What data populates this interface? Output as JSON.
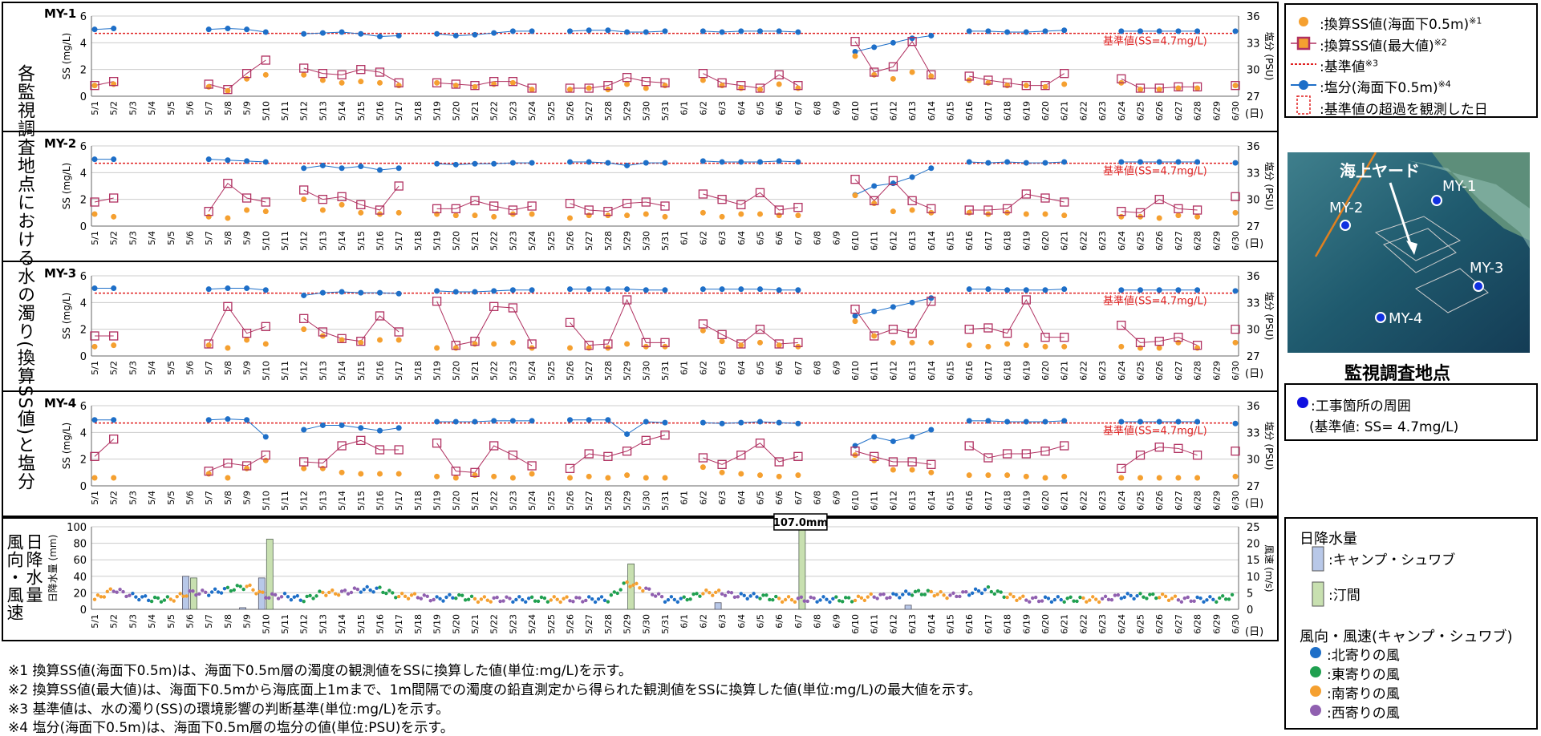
{
  "left_title": "各監視調査地点における水の濁り(換算SS値)と塩分",
  "rain_title_line1": "日降水量",
  "rain_title_line2": "風向・風速",
  "dates": [
    "5/1",
    "5/2",
    "5/3",
    "5/4",
    "5/5",
    "5/6",
    "5/7",
    "5/8",
    "5/9",
    "5/10",
    "5/11",
    "5/12",
    "5/13",
    "5/14",
    "5/15",
    "5/16",
    "5/17",
    "5/18",
    "5/19",
    "5/20",
    "5/21",
    "5/22",
    "5/23",
    "5/24",
    "5/25",
    "5/26",
    "5/27",
    "5/28",
    "5/29",
    "5/30",
    "5/31",
    "6/1",
    "6/2",
    "6/3",
    "6/4",
    "6/5",
    "6/6",
    "6/7",
    "6/8",
    "6/9",
    "6/10",
    "6/11",
    "6/12",
    "6/13",
    "6/14",
    "6/15",
    "6/16",
    "6/17",
    "6/18",
    "6/19",
    "6/20",
    "6/21",
    "6/22",
    "6/23",
    "6/24",
    "6/25",
    "6/26",
    "6/27",
    "6/28",
    "6/29",
    "6/30"
  ],
  "day_unit": "(日)",
  "ss_axis_label": "SS (mg/L)",
  "sal_axis_label": "塩分 (PSU)",
  "threshold_label": "基準値(SS=4.7mg/L)",
  "rain_axis_label": "日降水量 (mm)",
  "wind_axis_label": "風速 (m/s)",
  "rain_annotation": "107.0mm",
  "chart_data": [
    {
      "type": "line",
      "name": "MY-1",
      "ylim": [
        0,
        6
      ],
      "y2lim": [
        27,
        36
      ],
      "threshold": 4.7,
      "ss_surface": [
        0.8,
        0.9,
        null,
        null,
        null,
        null,
        0.7,
        0.4,
        1.3,
        1.6,
        null,
        1.6,
        1.2,
        1.0,
        1.1,
        1.0,
        0.8,
        null,
        1.0,
        0.8,
        0.7,
        0.9,
        1.0,
        0.5,
        null,
        0.5,
        0.6,
        0.5,
        0.9,
        0.6,
        0.8,
        null,
        1.2,
        0.8,
        0.6,
        0.5,
        0.9,
        0.6,
        null,
        null,
        3.0,
        1.6,
        1.3,
        1.8,
        1.5,
        null,
        1.2,
        1.0,
        0.8,
        0.8,
        0.7,
        0.9,
        null,
        null,
        1.0,
        0.5,
        0.5,
        0.6,
        0.6,
        null,
        0.8
      ],
      "ss_max": [
        0.8,
        1.1,
        null,
        null,
        null,
        null,
        0.9,
        0.5,
        1.7,
        2.7,
        null,
        2.1,
        1.7,
        1.6,
        2.0,
        1.8,
        1.0,
        null,
        1.0,
        0.9,
        0.8,
        1.1,
        1.1,
        0.6,
        null,
        0.6,
        0.6,
        0.8,
        1.4,
        1.1,
        1.0,
        null,
        1.7,
        1.0,
        0.8,
        0.6,
        1.6,
        0.8,
        null,
        null,
        4.1,
        1.8,
        2.2,
        4.1,
        1.6,
        null,
        1.5,
        1.2,
        1.0,
        0.8,
        0.8,
        1.7,
        null,
        null,
        1.3,
        0.6,
        0.6,
        0.7,
        0.7,
        null,
        0.8
      ],
      "salinity": [
        34.5,
        34.6,
        null,
        null,
        null,
        null,
        34.5,
        34.6,
        34.5,
        34.2,
        null,
        34.0,
        34.1,
        34.2,
        34.0,
        33.7,
        33.8,
        null,
        34.0,
        33.8,
        33.9,
        34.1,
        34.3,
        34.3,
        null,
        34.3,
        34.4,
        34.4,
        34.2,
        34.2,
        34.3,
        null,
        34.3,
        34.2,
        34.3,
        34.3,
        34.3,
        34.2,
        null,
        null,
        32.0,
        32.5,
        33.0,
        33.5,
        33.8,
        null,
        34.3,
        34.3,
        34.2,
        34.2,
        34.3,
        34.4,
        null,
        null,
        34.3,
        34.3,
        34.3,
        34.3,
        34.3,
        null,
        34.3
      ]
    },
    {
      "type": "line",
      "name": "MY-2",
      "ylim": [
        0,
        6
      ],
      "y2lim": [
        27,
        36
      ],
      "threshold": 4.7,
      "ss_surface": [
        0.9,
        0.7,
        null,
        null,
        null,
        null,
        0.7,
        0.6,
        1.2,
        1.1,
        null,
        2.0,
        1.2,
        1.6,
        1.0,
        0.9,
        1.0,
        null,
        0.9,
        0.8,
        0.8,
        0.7,
        0.9,
        0.9,
        null,
        0.6,
        0.8,
        0.8,
        0.8,
        0.9,
        0.7,
        null,
        1.0,
        0.7,
        0.9,
        0.9,
        0.8,
        0.8,
        null,
        null,
        2.3,
        1.7,
        1.1,
        1.2,
        1.0,
        null,
        1.0,
        0.9,
        1.0,
        0.9,
        0.9,
        0.8,
        null,
        null,
        0.7,
        0.7,
        0.6,
        0.8,
        0.7,
        null,
        1.0
      ],
      "ss_max": [
        1.8,
        2.1,
        null,
        null,
        null,
        null,
        1.1,
        3.2,
        2.1,
        1.8,
        null,
        2.7,
        2.0,
        2.2,
        1.6,
        1.2,
        3.0,
        null,
        1.3,
        1.3,
        1.9,
        1.5,
        1.2,
        1.5,
        null,
        1.7,
        1.2,
        1.1,
        1.7,
        1.8,
        1.5,
        null,
        2.4,
        2.0,
        1.6,
        2.5,
        1.2,
        1.4,
        null,
        null,
        3.5,
        1.9,
        3.4,
        1.9,
        1.3,
        null,
        1.2,
        1.2,
        1.3,
        2.4,
        2.1,
        1.8,
        null,
        null,
        1.1,
        1.0,
        2.0,
        1.3,
        1.2,
        null,
        2.2
      ],
      "salinity": [
        34.5,
        34.5,
        null,
        null,
        null,
        null,
        34.5,
        34.4,
        34.3,
        34.2,
        null,
        33.5,
        33.8,
        33.5,
        33.7,
        33.3,
        33.5,
        null,
        34.0,
        33.9,
        34.0,
        34.0,
        34.1,
        34.1,
        null,
        34.2,
        34.2,
        34.1,
        33.8,
        34.1,
        34.1,
        null,
        34.3,
        34.2,
        34.2,
        34.2,
        34.3,
        34.2,
        null,
        null,
        30.5,
        31.5,
        31.8,
        32.5,
        33.5,
        null,
        34.2,
        34.1,
        34.2,
        34.1,
        34.1,
        34.2,
        null,
        null,
        34.2,
        34.2,
        34.2,
        34.2,
        34.2,
        null,
        34.1
      ]
    },
    {
      "type": "line",
      "name": "MY-3",
      "ylim": [
        0,
        6
      ],
      "y2lim": [
        27,
        36
      ],
      "threshold": 4.7,
      "ss_surface": [
        0.7,
        0.8,
        null,
        null,
        null,
        null,
        0.8,
        0.6,
        1.2,
        0.9,
        null,
        2.0,
        1.5,
        1.2,
        1.0,
        1.2,
        1.2,
        null,
        0.6,
        0.6,
        0.9,
        0.9,
        1.0,
        0.6,
        null,
        0.6,
        0.6,
        0.6,
        0.9,
        0.7,
        0.7,
        null,
        1.9,
        1.1,
        0.8,
        1.0,
        0.8,
        0.7,
        null,
        null,
        2.6,
        1.5,
        1.0,
        1.0,
        1.0,
        null,
        0.8,
        0.7,
        0.9,
        0.8,
        0.7,
        0.7,
        null,
        null,
        0.7,
        0.6,
        0.6,
        1.0,
        0.6,
        null,
        1.0
      ],
      "ss_max": [
        1.5,
        1.5,
        null,
        null,
        null,
        null,
        0.9,
        3.7,
        1.7,
        2.2,
        null,
        2.8,
        1.8,
        1.3,
        1.1,
        3.0,
        1.8,
        null,
        4.1,
        0.8,
        1.1,
        3.7,
        3.6,
        0.9,
        null,
        2.5,
        0.8,
        0.9,
        4.2,
        1.0,
        1.0,
        null,
        2.4,
        1.6,
        0.9,
        2.0,
        0.9,
        1.0,
        null,
        null,
        3.5,
        1.5,
        2.0,
        1.7,
        4.1,
        null,
        2.0,
        2.1,
        1.7,
        4.2,
        1.4,
        1.4,
        null,
        null,
        2.3,
        1.0,
        1.1,
        1.4,
        0.8,
        null,
        2.0
      ],
      "salinity": [
        34.6,
        34.6,
        null,
        null,
        null,
        null,
        34.5,
        34.6,
        34.6,
        34.4,
        null,
        33.8,
        34.1,
        34.2,
        34.1,
        34.1,
        34.0,
        null,
        34.3,
        34.2,
        34.2,
        34.3,
        34.4,
        34.4,
        null,
        34.5,
        34.5,
        34.5,
        34.5,
        34.4,
        34.4,
        null,
        34.5,
        34.5,
        34.5,
        34.5,
        34.4,
        34.4,
        null,
        null,
        31.5,
        32.0,
        32.5,
        33.0,
        33.5,
        null,
        34.5,
        34.5,
        34.4,
        34.4,
        34.4,
        34.5,
        null,
        null,
        34.4,
        34.4,
        34.4,
        34.4,
        34.4,
        null,
        34.3
      ]
    },
    {
      "type": "line",
      "name": "MY-4",
      "ylim": [
        0,
        6
      ],
      "y2lim": [
        27,
        36
      ],
      "threshold": 4.7,
      "ss_surface": [
        0.6,
        0.6,
        null,
        null,
        null,
        null,
        0.9,
        0.6,
        1.3,
        1.9,
        null,
        1.3,
        1.3,
        1.0,
        0.9,
        0.9,
        0.9,
        null,
        0.7,
        0.6,
        0.8,
        0.7,
        0.6,
        0.9,
        null,
        0.6,
        0.7,
        0.6,
        0.8,
        0.6,
        0.6,
        null,
        1.4,
        1.0,
        0.9,
        0.8,
        0.7,
        0.8,
        null,
        null,
        2.3,
        1.9,
        1.2,
        1.2,
        1.0,
        null,
        0.8,
        0.8,
        0.8,
        0.7,
        0.6,
        0.7,
        null,
        null,
        0.6,
        0.6,
        0.6,
        0.6,
        0.6,
        null,
        0.7
      ],
      "ss_max": [
        2.2,
        3.5,
        null,
        null,
        null,
        null,
        1.1,
        1.7,
        1.5,
        2.3,
        null,
        1.8,
        1.7,
        3.0,
        3.4,
        2.7,
        2.7,
        null,
        3.2,
        1.1,
        1.0,
        3.0,
        2.3,
        1.5,
        null,
        1.3,
        2.4,
        2.2,
        2.6,
        3.4,
        3.8,
        null,
        2.1,
        1.6,
        2.3,
        3.2,
        1.8,
        2.2,
        null,
        null,
        2.6,
        2.2,
        1.8,
        1.8,
        1.6,
        null,
        3.0,
        2.1,
        2.4,
        2.4,
        2.6,
        3.0,
        null,
        null,
        1.3,
        2.3,
        2.9,
        2.8,
        2.3,
        null,
        2.6
      ],
      "salinity": [
        34.4,
        34.4,
        null,
        null,
        null,
        null,
        34.4,
        34.5,
        34.4,
        32.5,
        null,
        33.3,
        33.8,
        33.8,
        33.5,
        33.2,
        33.5,
        null,
        34.2,
        34.2,
        34.2,
        34.3,
        34.3,
        34.3,
        null,
        34.4,
        34.4,
        34.4,
        32.8,
        34.2,
        34.1,
        null,
        34.1,
        34.0,
        34.1,
        34.2,
        34.1,
        34.0,
        null,
        null,
        31.5,
        32.5,
        32.0,
        32.5,
        33.3,
        null,
        34.3,
        34.3,
        34.2,
        34.2,
        34.2,
        34.3,
        null,
        null,
        34.2,
        34.2,
        34.2,
        34.2,
        34.2,
        null,
        34.0
      ]
    },
    {
      "type": "bar",
      "name": "日降水量・風向風速",
      "ylim": [
        0,
        100
      ],
      "y2lim": [
        0,
        25
      ],
      "rain_camp_schwab": [
        0,
        0,
        0,
        0,
        0,
        40,
        0,
        0,
        2,
        38,
        0,
        0,
        0,
        0,
        0,
        0,
        0,
        0,
        0,
        0,
        0,
        0,
        0,
        0,
        0,
        0,
        0,
        0,
        0,
        0,
        0,
        0,
        0,
        8,
        0,
        0,
        0,
        0,
        0,
        0,
        0,
        0,
        0,
        5,
        0,
        0,
        0,
        0,
        0,
        0,
        0,
        0,
        0,
        0,
        0,
        0,
        0,
        0,
        0,
        0,
        0
      ],
      "rain_kin": [
        0,
        0,
        0,
        0,
        0,
        38,
        0,
        0,
        0,
        85,
        0,
        0,
        0,
        0,
        0,
        0,
        0,
        0,
        0,
        0,
        0,
        0,
        0,
        0,
        0,
        0,
        0,
        0,
        55,
        0,
        0,
        0,
        0,
        0,
        0,
        0,
        0,
        107,
        0,
        0,
        0,
        0,
        0,
        0,
        0,
        0,
        0,
        0,
        0,
        0,
        0,
        0,
        0,
        0,
        0,
        0,
        0,
        0,
        0,
        0,
        0
      ],
      "wind_speed": [
        3,
        6,
        4,
        3,
        3,
        5,
        5,
        6,
        7,
        4,
        4,
        3,
        5,
        5,
        6,
        6,
        4,
        4,
        3,
        4,
        3,
        3,
        3,
        3,
        3,
        3,
        3,
        3,
        8,
        6,
        3,
        3,
        5,
        5,
        4,
        4,
        3,
        3,
        3,
        3,
        3,
        4,
        4,
        5,
        5,
        4,
        5,
        6,
        4,
        3,
        3,
        3,
        3,
        3,
        4,
        4,
        4,
        3,
        3,
        3,
        4
      ]
    }
  ],
  "legend_right": {
    "ss_surface": ":換算SS値(海面下0.5m)",
    "ss_surface_note": "※1",
    "ss_max": ":換算SS値(最大値)",
    "ss_max_note": "※2",
    "threshold": ":基準値",
    "threshold_note": "※3",
    "salinity": ":塩分(海面下0.5m)",
    "salinity_note": "※4",
    "exceed": ":基準値の超過を観測した日"
  },
  "map": {
    "yard_label": "海上ヤード",
    "points": [
      "MY-1",
      "MY-2",
      "MY-3",
      "MY-4"
    ],
    "caption": "監視調査地点"
  },
  "station_legend": {
    "line1": ":工事箇所の周囲",
    "line2": "(基準値: SS= 4.7mg/L)"
  },
  "rain_legend": {
    "title": "日降水量",
    "camp": ":キャンプ・シュワブ",
    "kin": ":汀間",
    "wind_title": "風向・風速(キャンプ・シュワブ)",
    "north": ":北寄りの風",
    "east": ":東寄りの風",
    "south": ":南寄りの風",
    "west": ":西寄りの風"
  },
  "notes": [
    "※1  換算SS値(海面下0.5m)は、海面下0.5m層の濁度の観測値をSSに換算した値(単位:mg/L)を示す。",
    "※2  換算SS値(最大値)は、海面下0.5mから海底面上1mまで、1m間隔での濁度の鉛直測定から得られた観測値をSSに換算した値(単位:mg/L)の最大値を示す。",
    "※3  基準値は、水の濁り(SS)の環境影響の判断基準(単位:mg/L)を示す。",
    "※4  塩分(海面下0.5m)は、海面下0.5m層の塩分の値(単位:PSU)を示す。"
  ],
  "colors": {
    "ss_surface": "#F5A030",
    "ss_max_edge": "#B03060",
    "ss_max_fill": "#F5A030",
    "threshold": "#E02020",
    "salinity": "#1E6FC8",
    "rain_camp": "#B8C8E8",
    "rain_kin": "#C8E0B0",
    "wind_north": "#1E6FC8",
    "wind_east": "#20A050",
    "wind_south": "#F5A030",
    "wind_west": "#9060B0"
  }
}
